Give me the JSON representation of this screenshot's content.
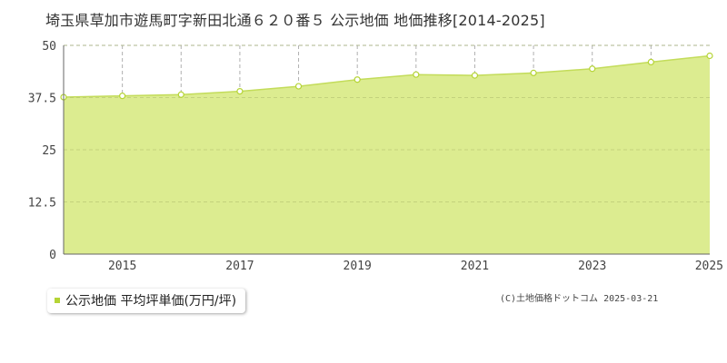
{
  "title": "埼玉県草加市遊馬町字新田北通６２０番５ 公示地価 地価推移[2014-2025]",
  "legend": {
    "label": "公示地価 平均坪単価(万円/坪)"
  },
  "credit": "(C)土地価格ドットコム 2025-03-21",
  "colors": {
    "area_fill": "#dcec90",
    "line": "#c3dc5a",
    "marker_fill": "#ffffff",
    "marker_stroke": "#b5d435",
    "grid": "#b0b0b0",
    "axis": "#666666",
    "legend_swatch": "#b5d435"
  },
  "chart_data": {
    "type": "area",
    "x": [
      2014,
      2015,
      2016,
      2017,
      2018,
      2019,
      2020,
      2021,
      2022,
      2023,
      2024,
      2025
    ],
    "series": [
      {
        "name": "公示地価 平均坪単価(万円/坪)",
        "values": [
          37.6,
          37.9,
          38.2,
          39.0,
          40.2,
          41.8,
          43.0,
          42.8,
          43.4,
          44.4,
          46.0,
          47.5
        ]
      }
    ],
    "ylim": [
      0,
      50
    ],
    "xlim": [
      2014,
      2025
    ],
    "y_ticks": [
      "0",
      "12.5",
      "25",
      "37.5",
      "50"
    ],
    "y_tick_values": [
      0,
      12.5,
      25,
      37.5,
      50
    ],
    "x_ticks": [
      "2015",
      "2017",
      "2019",
      "2021",
      "2023",
      "2025"
    ],
    "x_tick_values": [
      2015,
      2017,
      2019,
      2021,
      2023,
      2025
    ],
    "x_gridlines": [
      2015,
      2016,
      2017,
      2018,
      2019,
      2020,
      2021,
      2022,
      2023,
      2024
    ],
    "grid": true
  }
}
